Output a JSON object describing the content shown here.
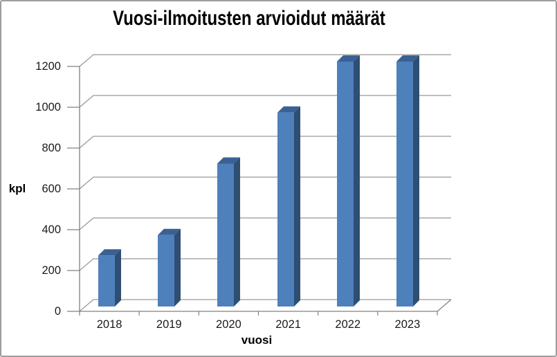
{
  "chart_data": {
    "type": "bar",
    "variant": "3d-column",
    "title": "Vuosi-ilmoitusten arvioidut määrät",
    "xlabel": "vuosi",
    "ylabel": "kpl",
    "categories": [
      "2018",
      "2019",
      "2020",
      "2021",
      "2022",
      "2023"
    ],
    "values": [
      250,
      350,
      700,
      950,
      1200,
      1200
    ],
    "ylim": [
      0,
      1200
    ],
    "ytick_step": 200,
    "ytick_labels": [
      "0",
      "200",
      "400",
      "600",
      "800",
      "1000",
      "1200"
    ],
    "grid": true,
    "legend": false,
    "colors": {
      "bar_front": "#4E80BC",
      "bar_top": "#3A6194",
      "bar_side": "#2E4E72",
      "gridline": "#969696",
      "axis": "#808080",
      "tick_label": "#1a1a1a",
      "frame_border": "#9d9d9d",
      "background": "#ffffff"
    }
  }
}
